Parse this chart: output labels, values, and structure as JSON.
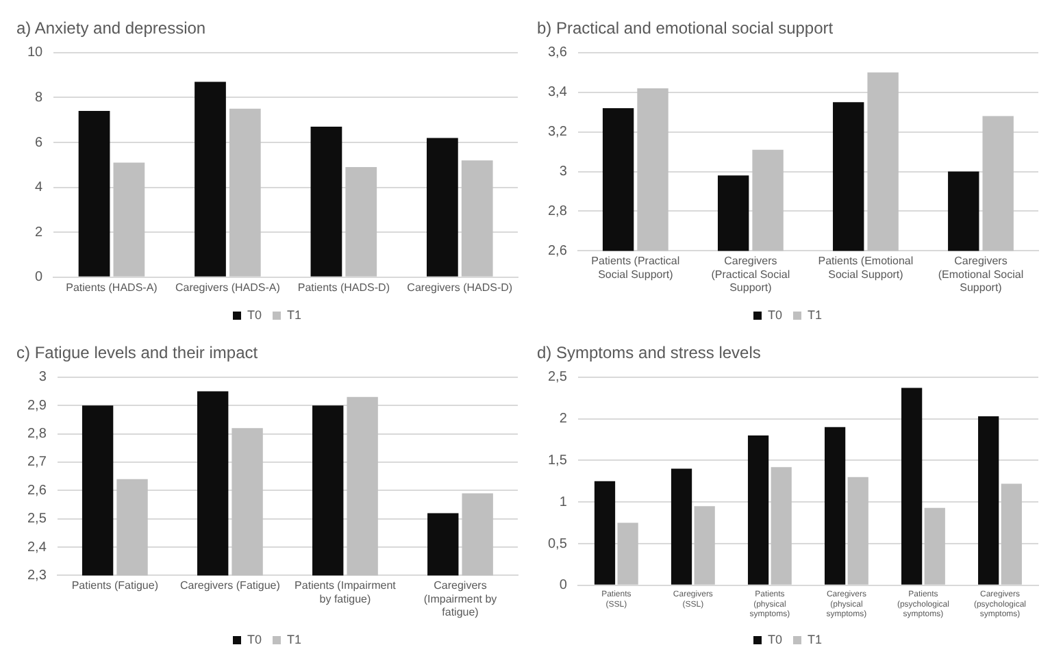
{
  "chart_data": [
    {
      "type": "bar",
      "title": "a) Anxiety and depression",
      "categories": [
        "Patients (HADS-A)",
        "Caregivers (HADS-A)",
        "Patients (HADS-D)",
        "Caregivers (HADS-D)"
      ],
      "series": [
        {
          "name": "T0",
          "color": "#0d0d0d",
          "values": [
            7.4,
            8.7,
            6.7,
            6.2
          ]
        },
        {
          "name": "T1",
          "color": "#bfbfbf",
          "values": [
            5.1,
            7.5,
            4.9,
            5.2
          ]
        }
      ],
      "ylim": [
        0,
        10
      ],
      "yticks": [
        0,
        2,
        4,
        6,
        8,
        10
      ],
      "grid": "y",
      "legend": "bottom"
    },
    {
      "type": "bar",
      "title": "b) Practical and emotional social support",
      "categories": [
        "Patients (Practical Social Support)",
        "Caregivers (Practical Social Support)",
        "Patients (Emotional Social Support)",
        "Caregivers (Emotional Social Support)"
      ],
      "series": [
        {
          "name": "T0",
          "color": "#0d0d0d",
          "values": [
            3.32,
            2.98,
            3.35,
            3.0
          ]
        },
        {
          "name": "T1",
          "color": "#bfbfbf",
          "values": [
            3.42,
            3.11,
            3.5,
            3.28
          ]
        }
      ],
      "ylim": [
        2.6,
        3.6
      ],
      "yticks": [
        {
          "value": 2.6,
          "label": "2,6"
        },
        {
          "value": 2.8,
          "label": "2,8"
        },
        3,
        {
          "value": 3.2,
          "label": "3,2"
        },
        {
          "value": 3.4,
          "label": "3,4"
        },
        {
          "value": 3.6,
          "label": "3,6"
        }
      ],
      "grid": "y",
      "legend": "bottom"
    },
    {
      "type": "bar",
      "title": "c) Fatigue levels and their impact",
      "categories": [
        "Patients (Fatigue)",
        "Caregivers (Fatigue)",
        "Patients (Impairment by fatigue)",
        "Caregivers (Impairment by fatigue)"
      ],
      "series": [
        {
          "name": "T0",
          "color": "#0d0d0d",
          "values": [
            2.9,
            2.95,
            2.9,
            2.52
          ]
        },
        {
          "name": "T1",
          "color": "#bfbfbf",
          "values": [
            2.64,
            2.82,
            2.93,
            2.59
          ]
        }
      ],
      "ylim": [
        2.3,
        3
      ],
      "yticks": [
        {
          "value": 2.3,
          "label": "2,3"
        },
        {
          "value": 2.4,
          "label": "2,4"
        },
        {
          "value": 2.5,
          "label": "2,5"
        },
        {
          "value": 2.6,
          "label": "2,6"
        },
        {
          "value": 2.7,
          "label": "2,7"
        },
        {
          "value": 2.8,
          "label": "2,8"
        },
        {
          "value": 2.9,
          "label": "2,9"
        },
        3
      ],
      "grid": "y",
      "legend": "bottom"
    },
    {
      "type": "bar",
      "title": "d) Symptoms and stress levels",
      "categories": [
        "Patients (SSL)",
        "Caregivers (SSL)",
        "Patients (physical symptoms)",
        "Caregivers (physical symptoms)",
        "Patients (psychological symptoms)",
        "Caregivers (psychological symptoms)"
      ],
      "series": [
        {
          "name": "T0",
          "color": "#0d0d0d",
          "values": [
            1.25,
            1.4,
            1.8,
            1.9,
            2.37,
            2.03
          ]
        },
        {
          "name": "T1",
          "color": "#bfbfbf",
          "values": [
            0.75,
            0.95,
            1.42,
            1.3,
            0.93,
            1.22
          ]
        }
      ],
      "ylim": [
        0,
        2.5
      ],
      "yticks": [
        0,
        {
          "value": 0.5,
          "label": "0,5"
        },
        1,
        {
          "value": 1.5,
          "label": "1,5"
        },
        2,
        {
          "value": 2.5,
          "label": "2,5"
        }
      ],
      "grid": "y",
      "legend": "bottom"
    }
  ]
}
